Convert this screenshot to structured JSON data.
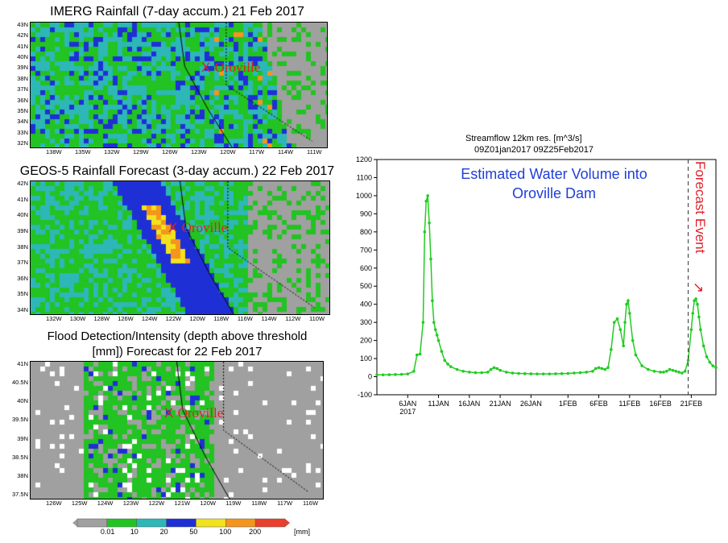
{
  "maps": [
    {
      "title": "IMERG Rainfall (7-day accum.) 21 Feb 2017",
      "lat_labels": [
        "43N",
        "42N",
        "41N",
        "40N",
        "39N",
        "38N",
        "37N",
        "36N",
        "35N",
        "34N",
        "33N",
        "32N"
      ],
      "lon_labels": [
        "138W",
        "135W",
        "132W",
        "129W",
        "126W",
        "123W",
        "120W",
        "117W",
        "114W",
        "111W"
      ],
      "marker": {
        "x": "X",
        "label": "Oroville"
      }
    },
    {
      "title": "GEOS-5 Rainfall Forecast (3-day accum.) 22 Feb 2017",
      "lat_labels": [
        "42N",
        "41N",
        "40N",
        "39N",
        "38N",
        "37N",
        "36N",
        "35N",
        "34N"
      ],
      "lon_labels": [
        "132W",
        "130W",
        "128W",
        "126W",
        "124W",
        "122W",
        "120W",
        "118W",
        "116W",
        "114W",
        "112W",
        "110W"
      ],
      "marker": {
        "x": "X",
        "label": "Oroville"
      }
    },
    {
      "title_line1": "Flood Detection/Intensity (depth above threshold",
      "title_line2": "[mm]) Forecast for 22 Feb 2017",
      "lat_labels": [
        "41N",
        "40.5N",
        "40N",
        "39.5N",
        "39N",
        "38.5N",
        "38N",
        "37.5N"
      ],
      "lon_labels": [
        "126W",
        "125W",
        "124W",
        "123W",
        "122W",
        "121W",
        "120W",
        "119W",
        "118W",
        "117W",
        "116W"
      ],
      "marker": {
        "x": "X",
        "label": "Oroville"
      }
    }
  ],
  "colorbar": {
    "labels": [
      "0.01",
      "10",
      "20",
      "50",
      "100",
      "200"
    ],
    "unit": "[mm]",
    "colors": [
      "#a0a0a0",
      "#22c322",
      "#2db7b7",
      "#1f2fd6",
      "#f2e21e",
      "#f5951d",
      "#e8402c"
    ]
  },
  "chart_data": {
    "type": "line",
    "title": "Streamflow 12km res. [m^3/s]",
    "subtitle": "09Z01jan2017 09Z25Feb2017",
    "annotation": "Estimated Water Volume into Oroville Dam",
    "annotation_line1": "Estimated Water Volume into",
    "annotation_line2": "Oroville Dam",
    "event_label": "Forecast Event",
    "event_arrow": "↘",
    "event_day": 51.5,
    "line_color": "#22cc22",
    "ylim": [
      -100,
      1200
    ],
    "yticks": [
      "-100",
      "0",
      "100",
      "200",
      "300",
      "400",
      "500",
      "600",
      "700",
      "800",
      "900",
      "1000",
      "1100",
      "1200"
    ],
    "xlim": [
      1,
      56
    ],
    "xticks": [
      {
        "day": 6,
        "label": "6JAN",
        "sub": "2017"
      },
      {
        "day": 11,
        "label": "11JAN",
        "sub": ""
      },
      {
        "day": 16,
        "label": "16JAN",
        "sub": ""
      },
      {
        "day": 21,
        "label": "21JAN",
        "sub": ""
      },
      {
        "day": 26,
        "label": "26JAN",
        "sub": ""
      },
      {
        "day": 32,
        "label": "1FEB",
        "sub": ""
      },
      {
        "day": 37,
        "label": "6FEB",
        "sub": ""
      },
      {
        "day": 42,
        "label": "11FEB",
        "sub": ""
      },
      {
        "day": 47,
        "label": "16FEB",
        "sub": ""
      },
      {
        "day": 52,
        "label": "21FEB",
        "sub": ""
      }
    ],
    "series": [
      {
        "x": [
          1,
          2,
          3,
          4,
          5,
          6,
          7,
          7.5,
          8,
          8.5,
          8.75,
          9,
          9.25,
          9.5,
          9.75,
          10,
          10.25,
          10.5,
          10.75,
          11,
          11.5,
          12,
          12.5,
          13,
          14,
          15,
          16,
          17,
          18,
          19,
          19.5,
          20,
          20.5,
          21,
          22,
          23,
          24,
          25,
          26,
          27,
          28,
          29,
          30,
          31,
          32,
          33,
          34,
          35,
          36,
          36.5,
          37,
          37.5,
          38,
          38.5,
          39,
          39.5,
          40,
          40.5,
          41,
          41.25,
          41.5,
          41.75,
          42,
          42.5,
          43,
          44,
          45,
          46,
          47,
          47.5,
          48,
          48.5,
          49,
          49.5,
          50,
          50.5,
          51,
          51.5,
          52,
          52.25,
          52.5,
          52.75,
          53,
          53.25,
          53.5,
          54,
          54.5,
          55,
          55.5,
          56
        ],
        "y": [
          10,
          10,
          11,
          12,
          13,
          15,
          30,
          120,
          125,
          300,
          800,
          970,
          1000,
          850,
          650,
          420,
          300,
          260,
          230,
          200,
          140,
          90,
          70,
          55,
          40,
          30,
          25,
          22,
          22,
          25,
          40,
          50,
          45,
          35,
          25,
          20,
          18,
          17,
          16,
          15,
          15,
          15,
          16,
          17,
          18,
          20,
          22,
          25,
          30,
          45,
          50,
          45,
          40,
          50,
          150,
          300,
          320,
          260,
          170,
          300,
          400,
          420,
          350,
          200,
          120,
          60,
          40,
          30,
          25,
          25,
          30,
          40,
          35,
          30,
          25,
          20,
          30,
          90,
          260,
          350,
          420,
          430,
          400,
          330,
          260,
          170,
          110,
          80,
          60,
          50
        ]
      }
    ]
  }
}
